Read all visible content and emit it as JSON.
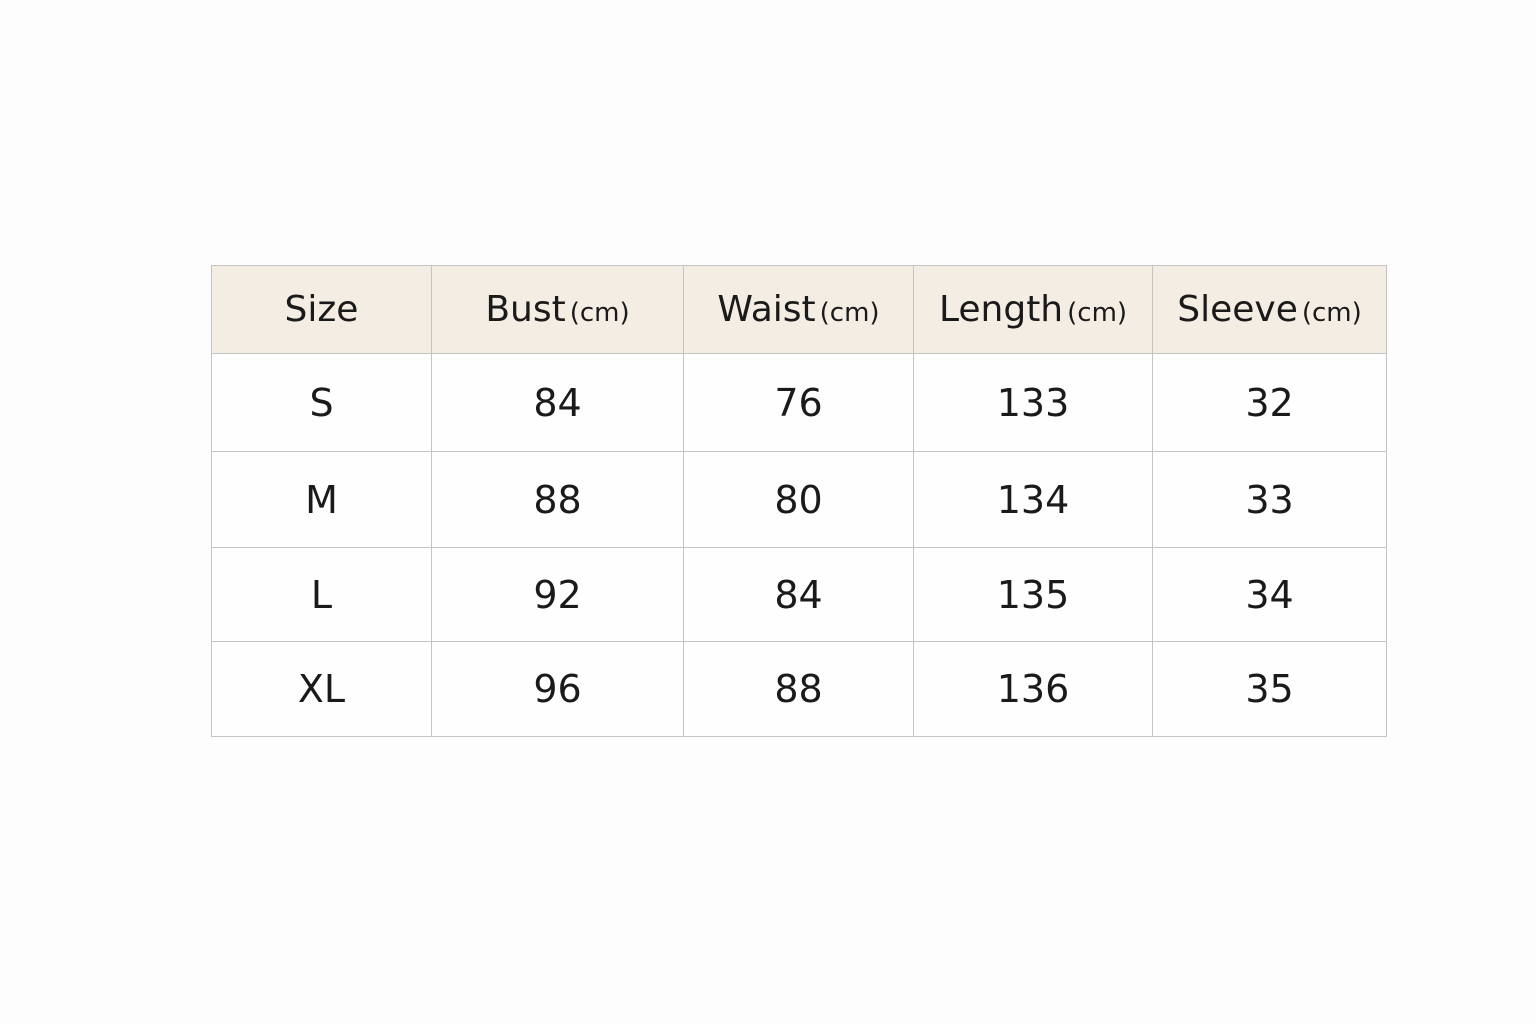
{
  "table": {
    "headers": [
      {
        "label": "Size",
        "unit": ""
      },
      {
        "label": "Bust",
        "unit": "(cm)"
      },
      {
        "label": "Waist",
        "unit": "(cm)"
      },
      {
        "label": "Length",
        "unit": "(cm)"
      },
      {
        "label": "Sleeve",
        "unit": "(cm)"
      }
    ],
    "rows": [
      [
        "S",
        "84",
        "76",
        "133",
        "32"
      ],
      [
        "M",
        "88",
        "80",
        "134",
        "33"
      ],
      [
        "L",
        "92",
        "84",
        "135",
        "34"
      ],
      [
        "XL",
        "96",
        "88",
        "136",
        "35"
      ]
    ]
  },
  "colors": {
    "header_bg": "#f4ede4",
    "border": "#c4c4c4"
  }
}
